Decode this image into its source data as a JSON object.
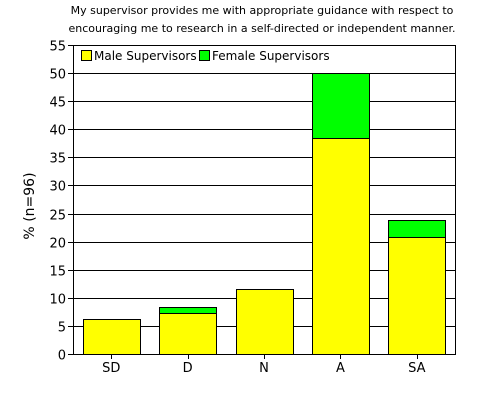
{
  "chart_data": {
    "type": "bar",
    "stacked": true,
    "title": [
      "My supervisor provides me with appropriate guidance with respect to",
      "encouraging me to research in a self-directed or independent manner."
    ],
    "xlabel": "",
    "ylabel": "% (n=96)",
    "ylim": [
      0,
      55
    ],
    "yticks": [
      0,
      5,
      10,
      15,
      20,
      25,
      30,
      35,
      40,
      45,
      50,
      55
    ],
    "grid": true,
    "legend_position": "top-left",
    "categories": [
      "SD",
      "D",
      "N",
      "A",
      "SA"
    ],
    "series": [
      {
        "name": "Male Supervisors",
        "color": "#ffff00",
        "values": [
          6.3,
          7.3,
          11.5,
          38.5,
          20.8
        ]
      },
      {
        "name": "Female Supervisors",
        "color": "#00ff00",
        "values": [
          0,
          1.0,
          0,
          11.5,
          3.1
        ]
      }
    ]
  }
}
